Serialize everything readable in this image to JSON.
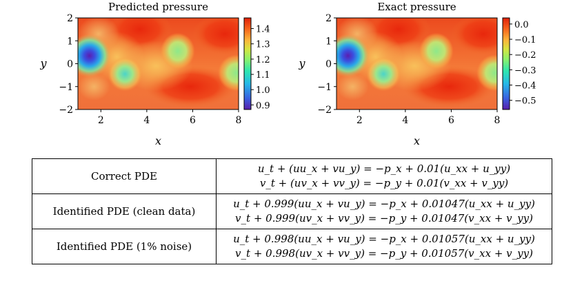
{
  "figure": {
    "panels": [
      {
        "title": "Predicted pressure",
        "xlabel": "x",
        "ylabel": "y",
        "xticks": [
          "2",
          "4",
          "6",
          "8"
        ],
        "yticks": [
          "2",
          "1",
          "0",
          "−1",
          "−2"
        ],
        "colorbar_ticks": [
          "1.4",
          "1.3",
          "1.2",
          "1.1",
          "1.0",
          "0.9"
        ],
        "colorbar_range": [
          0.87,
          1.47
        ]
      },
      {
        "title": "Exact pressure",
        "xlabel": "x",
        "ylabel": "y",
        "xticks": [
          "2",
          "4",
          "6",
          "8"
        ],
        "yticks": [
          "2",
          "1",
          "0",
          "−1",
          "−2"
        ],
        "colorbar_ticks": [
          "0.0",
          "−0.1",
          "−0.2",
          "−0.3",
          "−0.4",
          "−0.5"
        ],
        "colorbar_range": [
          -0.56,
          0.04
        ]
      }
    ],
    "axis_ranges": {
      "x": [
        1,
        8
      ],
      "y": [
        -2,
        2
      ]
    },
    "colormap": [
      "#30123b",
      "#4662d7",
      "#36aaf9",
      "#1ae4b6",
      "#72fe5e",
      "#c8ef34",
      "#faba39",
      "#f66b19",
      "#cb2a04",
      "#7a0403"
    ]
  },
  "table": {
    "rows": [
      {
        "label": "Correct PDE",
        "eq1": "u_t + (uu_x + vu_y) = −p_x + 0.01(u_xx + u_yy)",
        "eq2": "v_t + (uv_x + vv_y) = −p_y + 0.01(v_xx + v_yy)"
      },
      {
        "label": "Identified PDE (clean data)",
        "eq1": "u_t + 0.999(uu_x + vu_y) = −p_x + 0.01047(u_xx + u_yy)",
        "eq2": "v_t + 0.999(uv_x + vv_y) = −p_y + 0.01047(v_xx + v_yy)"
      },
      {
        "label": "Identified PDE (1% noise)",
        "eq1": "u_t + 0.998(uu_x + vu_y) = −p_x + 0.01057(u_xx + u_yy)",
        "eq2": "v_t + 0.998(uv_x + vv_y) = −p_y + 0.01057(v_xx + v_yy)"
      }
    ]
  }
}
